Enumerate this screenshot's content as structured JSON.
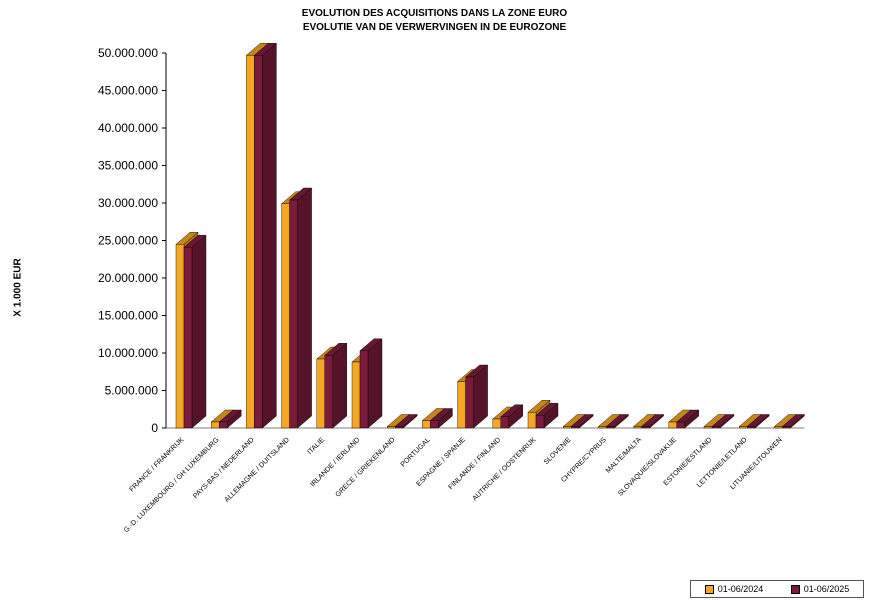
{
  "chart_data": {
    "type": "bar",
    "title": "EVOLUTION DES ACQUISITIONS DANS LA ZONE EURO",
    "subtitle": "EVOLUTIE VAN DE VERWERVINGEN IN DE EUROZONE",
    "ylabel": "X 1.000 EUR",
    "xlabel": "",
    "ylim": [
      0,
      50000000
    ],
    "y_ticks": [
      "0",
      "5.000.000",
      "10.000.000",
      "15.000.000",
      "20.000.000",
      "25.000.000",
      "30.000.000",
      "35.000.000",
      "40.000.000",
      "45.000.000",
      "50.000.000"
    ],
    "categories": [
      "FRANCE / FRANKRIJK",
      "G.-D. LUXEMBOURG / GH LUXEMBURG",
      "PAYS-BAS / NEDERLAND",
      "ALLEMAGNE / DUITSLAND",
      "ITALIE",
      "IRLANDE / IERLAND",
      "GRECE / GRIEKENLAND",
      "PORTUGAL",
      "ESPAGNE / SPANJE",
      "FINLANDE / FINLAND",
      "AUTRICHE / OOSTENRIJK",
      "SLOVENIE",
      "CHYPRE/CYPRUS",
      "MALTE/MALTA",
      "SLOVAQUIE/SLOVAKIJE",
      "ESTONIE/ESTLAND",
      "LETTONIE/LETLAND",
      "LITUANIE/LITOUWEN"
    ],
    "series": [
      {
        "name": "01-06/2024",
        "color": "#F5A623",
        "values": [
          24500000,
          800000,
          49700000,
          29900000,
          9200000,
          8800000,
          100000,
          1000000,
          6200000,
          1200000,
          2100000,
          30000,
          10000,
          20000,
          800000,
          30000,
          20000,
          20000
        ]
      },
      {
        "name": "01-06/2025",
        "color": "#7A1B3A",
        "values": [
          24100000,
          800000,
          49700000,
          30400000,
          9700000,
          10300000,
          100000,
          1000000,
          6800000,
          1500000,
          1700000,
          30000,
          10000,
          20000,
          800000,
          30000,
          20000,
          20000
        ]
      }
    ],
    "grid": false,
    "legend": "bottom-right"
  }
}
